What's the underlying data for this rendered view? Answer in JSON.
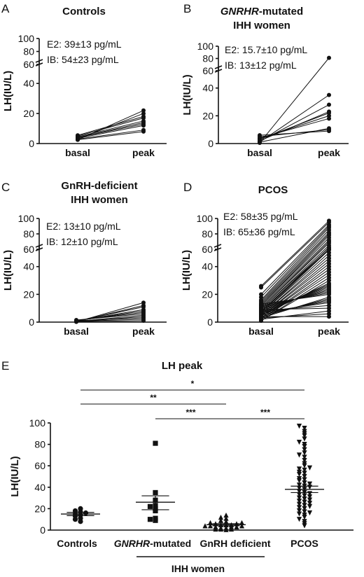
{
  "chart_data": [
    {
      "panel": "A",
      "type": "line",
      "title": "Controls",
      "ylabel": "LH(IU/L)",
      "categories": [
        "basal",
        "peak"
      ],
      "ylim": [
        0,
        100
      ],
      "yticks": [
        0,
        20,
        40,
        60,
        80,
        100
      ],
      "axis_break": [
        55,
        60
      ],
      "annotations": [
        "E2: 39±13 pg/mL",
        "IB: 54±23 pg/mL"
      ],
      "basal": [
        2.5,
        3,
        3.5,
        4,
        4,
        4.5,
        5,
        5.5,
        3,
        2.5
      ],
      "peak": [
        8,
        9,
        12,
        13,
        14,
        15,
        17,
        18,
        20,
        22
      ]
    },
    {
      "panel": "B",
      "type": "line",
      "title_italic": "GNRHR",
      "title_rest": "-mutated",
      "title_line2": "IHH women",
      "ylabel": "LH(IU/L)",
      "categories": [
        "basal",
        "peak"
      ],
      "ylim": [
        0,
        100
      ],
      "yticks": [
        0,
        20,
        40,
        60,
        80,
        100
      ],
      "axis_break": [
        55,
        60
      ],
      "annotations": [
        "E2: 15.7±10 pg/mL",
        "IB: 13±12 pg/mL"
      ],
      "basal": [
        0.5,
        1,
        1.5,
        2,
        3,
        3.5,
        4,
        5,
        6,
        1
      ],
      "peak": [
        81,
        35,
        28,
        23,
        22,
        20,
        18,
        10,
        9,
        11
      ]
    },
    {
      "panel": "C",
      "type": "line",
      "title": "GnRH-deficient",
      "title_line2": "IHH women",
      "ylabel": "LH(IU/L)",
      "categories": [
        "basal",
        "peak"
      ],
      "ylim": [
        0,
        100
      ],
      "yticks": [
        0,
        20,
        40,
        60,
        80,
        100
      ],
      "axis_break": [
        55,
        60
      ],
      "annotations": [
        "E2: 13±10 pg/mL",
        "IB: 12±10 pg/mL"
      ],
      "basal": [
        0.2,
        0.4,
        0.6,
        0.8,
        1,
        1.2,
        1.5,
        0.5,
        0.3,
        1,
        0.7,
        0.4
      ],
      "peak": [
        14,
        12,
        11,
        9,
        8,
        7,
        6,
        5,
        4,
        3,
        2,
        1
      ]
    },
    {
      "panel": "D",
      "type": "line",
      "title": "PCOS",
      "ylabel": "LH(IU/L)",
      "categories": [
        "basal",
        "peak"
      ],
      "ylim": [
        0,
        100
      ],
      "yticks": [
        0,
        20,
        40,
        60,
        80,
        100
      ],
      "axis_break": [
        55,
        60
      ],
      "annotations": [
        "E2: 58±35 pg/mL",
        "IB: 65±36 pg/mL"
      ],
      "basal": [
        26,
        25,
        20,
        18,
        16,
        15,
        14,
        13,
        12,
        12,
        11,
        10,
        10,
        9,
        9,
        8,
        8,
        7,
        7,
        6,
        6,
        5,
        5,
        4,
        4,
        3,
        3,
        2,
        2,
        1,
        1,
        5,
        6,
        7,
        8,
        9,
        10,
        11,
        12,
        13,
        3,
        4,
        5,
        6,
        7,
        8,
        9,
        2,
        3,
        4
      ],
      "peak": [
        97,
        95,
        92,
        90,
        88,
        85,
        82,
        80,
        78,
        75,
        72,
        70,
        68,
        65,
        62,
        60,
        58,
        56,
        54,
        52,
        50,
        48,
        46,
        44,
        42,
        40,
        38,
        36,
        34,
        32,
        30,
        28,
        27,
        26,
        25,
        24,
        23,
        22,
        21,
        20,
        18,
        17,
        16,
        15,
        14,
        12,
        10,
        8,
        6,
        4
      ]
    },
    {
      "panel": "E",
      "type": "scatter",
      "title": "LH peak",
      "ylabel": "LH(IU/L)",
      "categories": [
        "Controls",
        "-mutated",
        "GnRH deficient",
        "PCOS"
      ],
      "category_italic_prefix": [
        "",
        "GNRHR",
        "",
        ""
      ],
      "group_label": "IHH women",
      "ylim": [
        0,
        100
      ],
      "yticks": [
        0,
        20,
        40,
        60,
        80,
        100
      ],
      "series": [
        {
          "marker": "circle",
          "values": [
            8,
            10,
            11,
            13,
            14,
            15,
            16,
            17,
            18,
            20
          ],
          "mean": 15,
          "sem_low": 13.5,
          "sem_high": 16.5
        },
        {
          "marker": "square",
          "values": [
            81,
            35,
            28,
            23,
            22,
            20,
            18,
            10,
            9,
            11
          ],
          "mean": 26,
          "sem_low": 19,
          "sem_high": 32
        },
        {
          "marker": "triangle-up",
          "values": [
            14,
            12,
            11,
            9,
            8,
            7,
            7,
            6,
            6,
            5,
            5,
            5,
            4,
            4,
            4,
            3,
            3,
            3,
            2,
            2,
            1,
            1,
            1,
            0.5
          ],
          "mean": 5,
          "sem_low": 4,
          "sem_high": 6
        },
        {
          "marker": "triangle-down",
          "values": [
            97,
            95,
            92,
            90,
            88,
            85,
            82,
            80,
            78,
            75,
            72,
            70,
            68,
            65,
            62,
            60,
            58,
            56,
            54,
            52,
            50,
            48,
            46,
            44,
            42,
            40,
            38,
            36,
            34,
            32,
            30,
            28,
            27,
            26,
            25,
            24,
            23,
            22,
            21,
            20,
            18,
            17,
            16,
            15,
            14,
            12,
            10,
            8,
            6,
            4,
            35,
            33,
            31,
            29,
            41,
            39,
            43,
            47,
            53,
            57
          ],
          "mean": 38,
          "sem_low": 35,
          "sem_high": 41
        }
      ],
      "significance": [
        {
          "from": 0,
          "to": 3,
          "label": "*"
        },
        {
          "from": 0,
          "to": 2,
          "label": "**"
        },
        {
          "from": 1,
          "to": 2,
          "label": "***"
        },
        {
          "from": 2,
          "to": 3,
          "label": "***"
        }
      ]
    }
  ]
}
